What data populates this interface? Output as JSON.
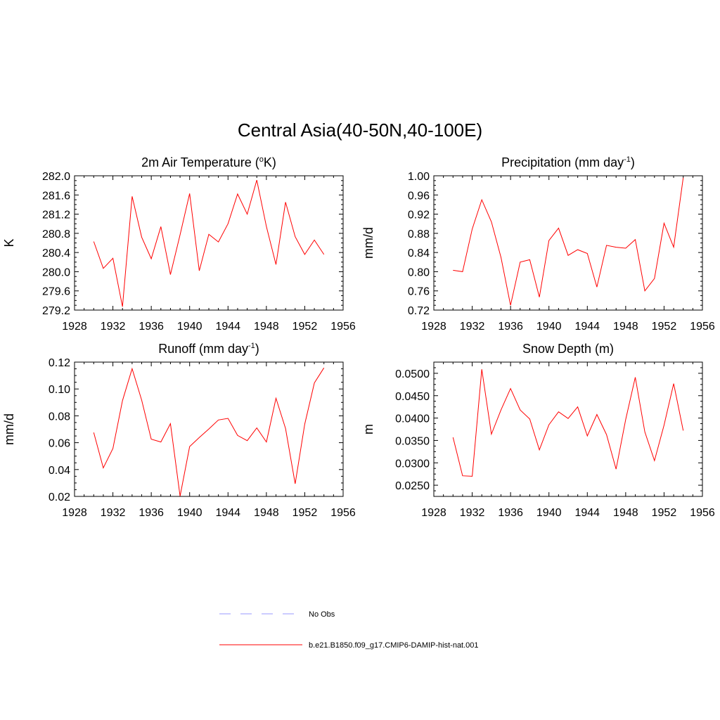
{
  "title": "Central Asia(40-50N,40-100E)",
  "colors": {
    "series": "#ff0000",
    "no_obs": "#9999ff",
    "axis": "#000000"
  },
  "legend": {
    "placement": "bottom-center",
    "items": [
      {
        "label": "No Obs",
        "style": "dashed",
        "color": "#9999ff"
      },
      {
        "label": "b.e21.B1850.f09_g17.CMIP6-DAMIP-hist-nat.001",
        "style": "solid",
        "color": "#ff0000"
      }
    ]
  },
  "chart_data": [
    {
      "type": "line",
      "title": "2m Air Temperature (",
      "title_sup": "o",
      "title_after": "K)",
      "xlabel": "",
      "ylabel": "K",
      "xlim": [
        1928,
        1956
      ],
      "ylim": [
        279.2,
        282.0
      ],
      "xticks": [
        "1928",
        "1932",
        "1936",
        "1940",
        "1944",
        "1948",
        "1952",
        "1956"
      ],
      "yticks": [
        "279.2",
        "279.6",
        "280.0",
        "280.4",
        "280.8",
        "281.2",
        "281.6",
        "282.0"
      ],
      "grid": false,
      "x": [
        1930,
        1931,
        1932,
        1933,
        1934,
        1935,
        1936,
        1937,
        1938,
        1939,
        1940,
        1941,
        1942,
        1943,
        1944,
        1945,
        1946,
        1947,
        1948,
        1949,
        1950,
        1951,
        1952,
        1953,
        1954
      ],
      "series": [
        {
          "name": "b.e21.B1850.f09_g17.CMIP6-DAMIP-hist-nat.001",
          "values": [
            280.63,
            280.07,
            280.28,
            279.27,
            281.57,
            280.72,
            280.27,
            280.94,
            279.94,
            280.77,
            281.63,
            280.02,
            280.78,
            280.62,
            281.0,
            281.62,
            281.2,
            281.91,
            280.94,
            280.15,
            281.45,
            280.73,
            280.36,
            280.66,
            280.36
          ]
        }
      ]
    },
    {
      "type": "line",
      "title": "Precipitation (mm day",
      "title_sup": "-1",
      "title_after": ")",
      "xlabel": "",
      "ylabel": "mm/d",
      "xlim": [
        1928,
        1956
      ],
      "ylim": [
        0.72,
        1.0
      ],
      "xticks": [
        "1928",
        "1932",
        "1936",
        "1940",
        "1944",
        "1948",
        "1952",
        "1956"
      ],
      "yticks": [
        "0.72",
        "0.76",
        "0.80",
        "0.84",
        "0.88",
        "0.92",
        "0.96",
        "1.00"
      ],
      "grid": false,
      "x": [
        1930,
        1931,
        1932,
        1933,
        1934,
        1935,
        1936,
        1937,
        1938,
        1939,
        1940,
        1941,
        1942,
        1943,
        1944,
        1945,
        1946,
        1947,
        1948,
        1949,
        1950,
        1951,
        1952,
        1953,
        1954
      ],
      "series": [
        {
          "name": "b.e21.B1850.f09_g17.CMIP6-DAMIP-hist-nat.001",
          "values": [
            0.803,
            0.8,
            0.889,
            0.95,
            0.904,
            0.83,
            0.73,
            0.82,
            0.825,
            0.747,
            0.865,
            0.891,
            0.834,
            0.846,
            0.838,
            0.768,
            0.855,
            0.851,
            0.849,
            0.867,
            0.76,
            0.786,
            0.901,
            0.851,
            0.996
          ]
        }
      ]
    },
    {
      "type": "line",
      "title": "Runoff (mm day",
      "title_sup": "-1",
      "title_after": ")",
      "xlabel": "",
      "ylabel": "mm/d",
      "xlim": [
        1928,
        1956
      ],
      "ylim": [
        0.02,
        0.12
      ],
      "xticks": [
        "1928",
        "1932",
        "1936",
        "1940",
        "1944",
        "1948",
        "1952",
        "1956"
      ],
      "yticks": [
        "0.02",
        "0.04",
        "0.06",
        "0.08",
        "0.10",
        "0.12"
      ],
      "grid": false,
      "x": [
        1930,
        1931,
        1932,
        1933,
        1934,
        1935,
        1936,
        1937,
        1938,
        1939,
        1940,
        1941,
        1942,
        1943,
        1944,
        1945,
        1946,
        1947,
        1948,
        1949,
        1950,
        1951,
        1952,
        1953,
        1954
      ],
      "series": [
        {
          "name": "b.e21.B1850.f09_g17.CMIP6-DAMIP-hist-nat.001",
          "values": [
            0.0676,
            0.0412,
            0.0557,
            0.0913,
            0.1151,
            0.0917,
            0.0626,
            0.0605,
            0.0742,
            0.0202,
            0.0571,
            0.0639,
            0.0702,
            0.0769,
            0.0781,
            0.0654,
            0.0615,
            0.071,
            0.0605,
            0.0931,
            0.0706,
            0.0294,
            0.0738,
            0.1045,
            0.1157
          ]
        }
      ]
    },
    {
      "type": "line",
      "title": "Snow Depth (m)",
      "title_sup": "",
      "title_after": "",
      "xlabel": "",
      "ylabel": "m",
      "xlim": [
        1928,
        1956
      ],
      "ylim": [
        0.0225,
        0.0525
      ],
      "xticks": [
        "1928",
        "1932",
        "1936",
        "1940",
        "1944",
        "1948",
        "1952",
        "1956"
      ],
      "yticks": [
        "0.0250",
        "0.0300",
        "0.0350",
        "0.0400",
        "0.0450",
        "0.0500"
      ],
      "grid": false,
      "x": [
        1930,
        1931,
        1932,
        1933,
        1934,
        1935,
        1936,
        1937,
        1938,
        1939,
        1940,
        1941,
        1942,
        1943,
        1944,
        1945,
        1946,
        1947,
        1948,
        1949,
        1950,
        1951,
        1952,
        1953,
        1954
      ],
      "series": [
        {
          "name": "b.e21.B1850.f09_g17.CMIP6-DAMIP-hist-nat.001",
          "values": [
            0.0357,
            0.0271,
            0.027,
            0.0509,
            0.0364,
            0.0418,
            0.0466,
            0.0418,
            0.0398,
            0.0329,
            0.0385,
            0.0414,
            0.0399,
            0.0425,
            0.036,
            0.0408,
            0.0363,
            0.0286,
            0.0397,
            0.0491,
            0.0369,
            0.0305,
            0.0384,
            0.0477,
            0.0372
          ]
        }
      ]
    }
  ]
}
